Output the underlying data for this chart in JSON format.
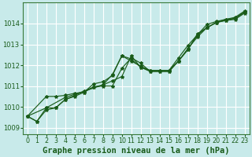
{
  "bg_color": "#c8eaea",
  "plot_bg_color": "#c8eaea",
  "grid_color": "#ffffff",
  "line_color": "#1a5c1a",
  "xlabel": "Graphe pression niveau de la mer (hPa)",
  "xlabel_fontsize": 7.5,
  "tick_fontsize": 5.8,
  "ytick_fontsize": 6.0,
  "xlim": [
    -0.5,
    23.5
  ],
  "ylim": [
    1008.7,
    1015.0
  ],
  "yticks": [
    1009,
    1010,
    1011,
    1012,
    1013,
    1014
  ],
  "xticks": [
    0,
    1,
    2,
    3,
    4,
    5,
    6,
    7,
    8,
    9,
    10,
    11,
    12,
    13,
    14,
    15,
    16,
    17,
    18,
    19,
    20,
    21,
    22,
    23
  ],
  "line1_x": [
    0,
    1,
    2,
    3,
    4,
    5,
    6,
    7,
    8,
    9,
    10,
    11,
    12,
    13,
    14,
    15,
    16,
    17,
    18,
    19,
    20,
    21,
    22,
    23
  ],
  "line1_y": [
    1009.55,
    1009.3,
    1009.85,
    1009.95,
    1010.35,
    1010.55,
    1010.75,
    1010.95,
    1011.05,
    1011.25,
    1011.45,
    1012.45,
    1011.9,
    1011.75,
    1011.75,
    1011.75,
    1012.35,
    1012.95,
    1013.45,
    1013.95,
    1014.1,
    1014.2,
    1014.3,
    1014.6
  ],
  "line2_x": [
    0,
    1,
    2,
    3,
    4,
    5,
    6,
    7,
    8,
    9,
    10,
    11,
    12,
    13,
    14,
    15,
    16,
    17,
    18,
    19,
    20,
    21,
    22,
    23
  ],
  "line2_y": [
    1009.55,
    1009.3,
    1009.95,
    1009.95,
    1010.35,
    1010.5,
    1010.7,
    1010.95,
    1011.0,
    1011.0,
    1011.85,
    1012.35,
    1012.1,
    1011.7,
    1011.7,
    1011.7,
    1012.2,
    1012.8,
    1013.35,
    1013.8,
    1014.05,
    1014.15,
    1014.25,
    1014.55
  ],
  "line3_x": [
    0,
    2,
    3,
    4,
    5,
    6,
    7,
    8,
    9,
    10,
    11,
    12,
    13,
    14,
    15,
    16,
    17,
    18,
    19,
    20,
    21,
    22,
    23
  ],
  "line3_y": [
    1009.55,
    1010.5,
    1010.5,
    1010.55,
    1010.65,
    1010.7,
    1011.1,
    1011.2,
    1011.5,
    1012.45,
    1012.2,
    1011.95,
    1011.75,
    1011.75,
    1011.75,
    1012.2,
    1012.75,
    1013.45,
    1013.8,
    1014.05,
    1014.15,
    1014.2,
    1014.5
  ],
  "line4_x": [
    0,
    2,
    4,
    8,
    9,
    10,
    11,
    12,
    13,
    14,
    15,
    16,
    17,
    18,
    19,
    20,
    21,
    22,
    23
  ],
  "line4_y": [
    1009.55,
    1009.95,
    1010.45,
    1011.05,
    1011.55,
    1012.45,
    1012.3,
    1011.9,
    1011.7,
    1011.7,
    1011.7,
    1012.2,
    1012.75,
    1013.5,
    1013.8,
    1014.05,
    1014.2,
    1014.25,
    1014.55
  ]
}
